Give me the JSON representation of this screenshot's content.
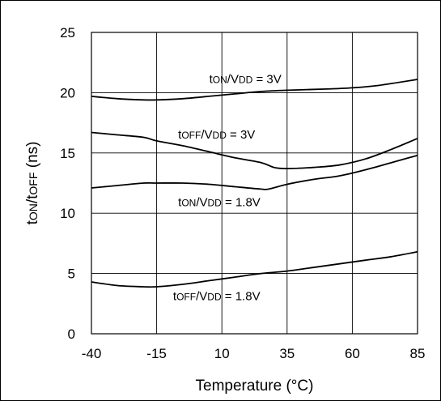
{
  "chart_data": {
    "type": "line",
    "title": "",
    "xlabel": "Temperature (°C)",
    "ylabel": "tON/tOFF (ns)",
    "xlim": [
      -40,
      85
    ],
    "ylim": [
      0,
      25
    ],
    "xticks": [
      -40,
      -15,
      10,
      35,
      60,
      85
    ],
    "yticks": [
      0,
      5,
      10,
      15,
      20,
      25
    ],
    "grid": true,
    "series": [
      {
        "name": "tON/VDD = 3V",
        "x": [
          -40,
          -30,
          -20,
          -15,
          -5,
          5,
          15,
          25,
          35,
          50,
          60,
          70,
          85
        ],
        "y": [
          19.7,
          19.5,
          19.4,
          19.4,
          19.5,
          19.7,
          19.9,
          20.1,
          20.2,
          20.3,
          20.4,
          20.6,
          21.1
        ]
      },
      {
        "name": "tOFF/VDD = 3V",
        "x": [
          -40,
          -30,
          -20,
          -15,
          -5,
          5,
          15,
          25,
          30,
          35,
          45,
          55,
          65,
          75,
          85
        ],
        "y": [
          16.7,
          16.5,
          16.3,
          16.0,
          15.6,
          15.1,
          14.6,
          14.2,
          13.8,
          13.7,
          13.8,
          14.0,
          14.5,
          15.3,
          16.2
        ]
      },
      {
        "name": "tON/VDD = 1.8V",
        "x": [
          -40,
          -30,
          -20,
          -15,
          -5,
          5,
          15,
          25,
          28,
          35,
          45,
          55,
          65,
          75,
          85
        ],
        "y": [
          12.1,
          12.3,
          12.5,
          12.5,
          12.5,
          12.4,
          12.2,
          12.0,
          12.0,
          12.4,
          12.8,
          13.1,
          13.6,
          14.2,
          14.8
        ]
      },
      {
        "name": "tOFF/VDD = 1.8V",
        "x": [
          -40,
          -30,
          -20,
          -15,
          -5,
          5,
          15,
          25,
          35,
          45,
          55,
          65,
          75,
          85
        ],
        "y": [
          4.3,
          4.0,
          3.9,
          3.9,
          4.1,
          4.4,
          4.7,
          5.0,
          5.2,
          5.5,
          5.8,
          6.1,
          6.4,
          6.8
        ]
      }
    ],
    "annotations": [
      {
        "sub1": "t",
        "sub2": "ON",
        "sub3": "/V",
        "sub4": "DD",
        "sub5": " = 3V",
        "x": 19,
        "y": 20.8
      },
      {
        "sub1": "t",
        "sub2": "OFF",
        "sub3": "/V",
        "sub4": "DD",
        "sub5": " = 3V",
        "x": 8,
        "y": 16.2
      },
      {
        "sub1": "t",
        "sub2": "ON",
        "sub3": "/V",
        "sub4": "DD",
        "sub5": " = 1.8V",
        "x": 9,
        "y": 10.6
      },
      {
        "sub1": "t",
        "sub2": "OFF",
        "sub3": "/V",
        "sub4": "DD",
        "sub5": " = 1.8V",
        "x": 8,
        "y": 2.8
      }
    ],
    "ylabel_parts": {
      "p1": "t",
      "p2": "ON",
      "p3": "/t",
      "p4": "OFF",
      "p5": " (ns)"
    },
    "line_color": "#000000",
    "grid_color": "#000000"
  }
}
